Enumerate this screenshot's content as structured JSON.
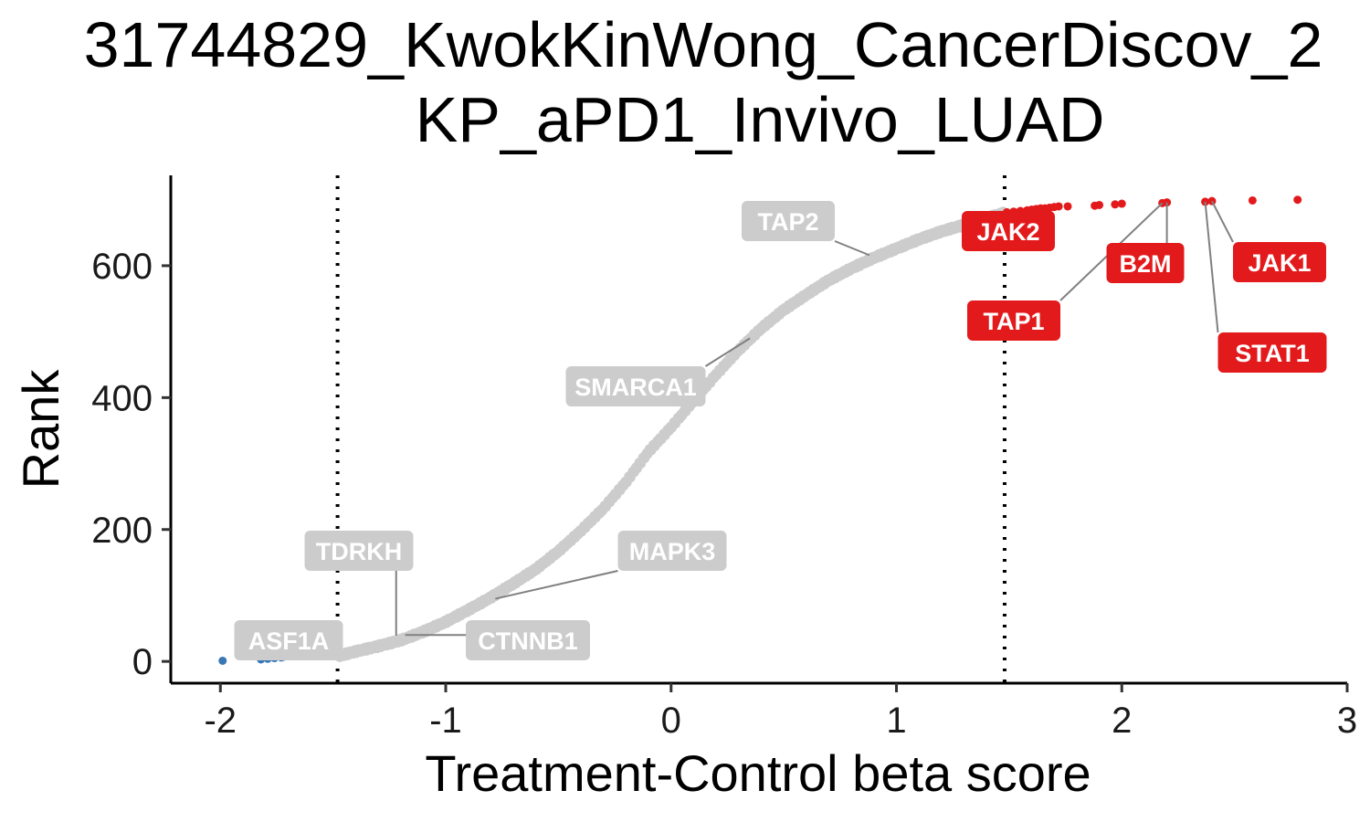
{
  "chart_data": {
    "type": "scatter",
    "title_line1": "31744829_KwokKinWong_CancerDiscov_2",
    "title_line2": "KP_aPD1_Invivo_LUAD",
    "xlabel": "Treatment-Control beta score",
    "ylabel": "Rank",
    "xlim": [
      -2.22,
      3.0
    ],
    "ylim": [
      -33,
      737
    ],
    "x_ticks": [
      -2,
      -1,
      0,
      1,
      2,
      3
    ],
    "x_tick_labels": [
      "-2",
      "-1",
      "0",
      "1",
      "2",
      "3"
    ],
    "y_ticks": [
      0,
      200,
      400,
      600
    ],
    "y_tick_labels": [
      "0",
      "200",
      "400",
      "600"
    ],
    "threshold_lines": [
      -1.48,
      1.48
    ],
    "grid": false,
    "legend": "none",
    "colors": {
      "negative": "#3a78b5",
      "neutral": "#cccccc",
      "positive": "#e31a1c",
      "leader_line": "#808080"
    },
    "series": [
      {
        "group": "negative",
        "points": [
          [
            -1.99,
            1
          ],
          [
            -1.82,
            3
          ],
          [
            -1.79,
            4
          ],
          [
            -1.76,
            5
          ],
          [
            -1.73,
            6
          ],
          [
            -1.72,
            7
          ]
        ]
      },
      {
        "group": "neutral",
        "curve_knots": [
          [
            -1.48,
            8
          ],
          [
            -1.4,
            15
          ],
          [
            -1.3,
            23
          ],
          [
            -1.2,
            32
          ],
          [
            -1.1,
            45
          ],
          [
            -1.0,
            60
          ],
          [
            -0.9,
            78
          ],
          [
            -0.8,
            97
          ],
          [
            -0.7,
            118
          ],
          [
            -0.6,
            140
          ],
          [
            -0.5,
            167
          ],
          [
            -0.4,
            198
          ],
          [
            -0.3,
            232
          ],
          [
            -0.2,
            272
          ],
          [
            -0.1,
            318
          ],
          [
            0.0,
            355
          ],
          [
            0.1,
            395
          ],
          [
            0.2,
            435
          ],
          [
            0.3,
            472
          ],
          [
            0.4,
            505
          ],
          [
            0.5,
            533
          ],
          [
            0.6,
            556
          ],
          [
            0.7,
            578
          ],
          [
            0.8,
            596
          ],
          [
            0.9,
            612
          ],
          [
            1.0,
            626
          ],
          [
            1.1,
            640
          ],
          [
            1.2,
            652
          ],
          [
            1.3,
            662
          ],
          [
            1.4,
            672
          ],
          [
            1.48,
            680
          ]
        ]
      },
      {
        "group": "positive",
        "points": [
          [
            1.49,
            681
          ],
          [
            1.52,
            682
          ],
          [
            1.55,
            683
          ],
          [
            1.58,
            684
          ],
          [
            1.6,
            685
          ],
          [
            1.62,
            686
          ],
          [
            1.64,
            687
          ],
          [
            1.66,
            687
          ],
          [
            1.68,
            688
          ],
          [
            1.7,
            689
          ],
          [
            1.72,
            690
          ],
          [
            1.76,
            690
          ],
          [
            1.88,
            691
          ],
          [
            1.9,
            692
          ],
          [
            1.97,
            693
          ],
          [
            2.0,
            694
          ],
          [
            2.18,
            695
          ],
          [
            2.2,
            696
          ],
          [
            2.37,
            697
          ],
          [
            2.4,
            698
          ],
          [
            2.58,
            699
          ],
          [
            2.78,
            700
          ]
        ]
      }
    ],
    "labels": [
      {
        "text": "ASF1A",
        "group": "neutral",
        "x": -1.7,
        "y": 5
      },
      {
        "text": "TDRKH",
        "group": "neutral",
        "x": -1.22,
        "y": 39
      },
      {
        "text": "CTNNB1",
        "group": "neutral",
        "x": -1.18,
        "y": 40
      },
      {
        "text": "MAPK3",
        "group": "neutral",
        "x": -0.78,
        "y": 95
      },
      {
        "text": "SMARCA1",
        "group": "neutral",
        "x": 0.35,
        "y": 490
      },
      {
        "text": "TAP2",
        "group": "neutral",
        "x": 0.88,
        "y": 616
      },
      {
        "text": "JAK2",
        "group": "positive",
        "x": 1.52,
        "y": 682
      },
      {
        "text": "TAP1",
        "group": "positive",
        "x": 2.18,
        "y": 695
      },
      {
        "text": "B2M",
        "group": "positive",
        "x": 2.2,
        "y": 696
      },
      {
        "text": "JAK1",
        "group": "positive",
        "x": 2.4,
        "y": 698
      },
      {
        "text": "STAT1",
        "group": "positive",
        "x": 2.37,
        "y": 697
      }
    ]
  }
}
